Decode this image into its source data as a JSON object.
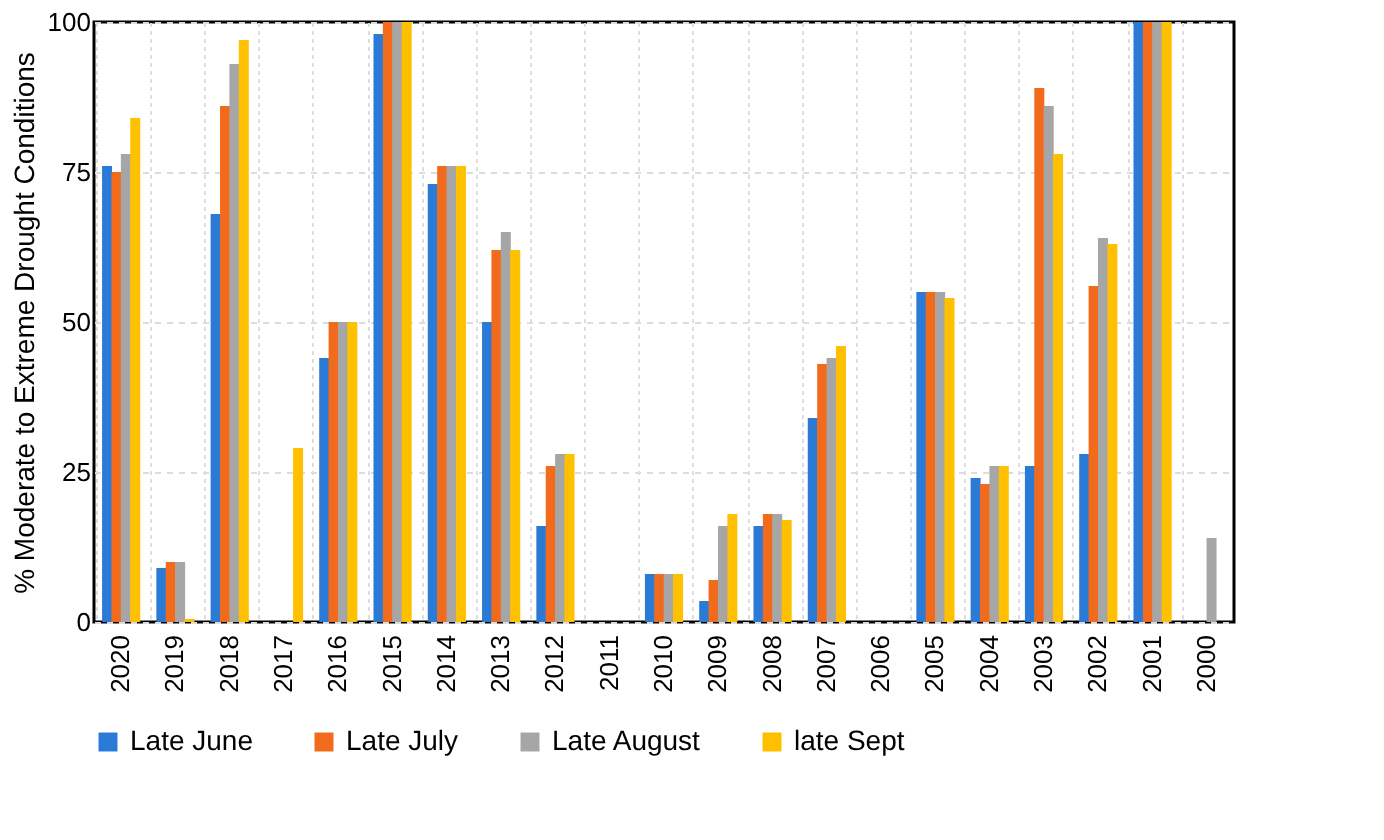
{
  "chart_data": {
    "type": "bar",
    "ylabel": "% Moderate to Extreme Drought Conditions",
    "categories": [
      "2020",
      "2019",
      "2018",
      "2017",
      "2016",
      "2015",
      "2014",
      "2013",
      "2012",
      "2011",
      "2010",
      "2009",
      "2008",
      "2007",
      "2006",
      "2005",
      "2004",
      "2003",
      "2002",
      "2001",
      "2000"
    ],
    "series": [
      {
        "name": "Late June",
        "color": "#2b7bd6",
        "values": [
          76,
          9,
          68,
          null,
          44,
          98,
          73,
          50,
          16,
          null,
          8,
          3.5,
          16,
          34,
          null,
          55,
          24,
          26,
          28,
          100,
          null
        ]
      },
      {
        "name": "Late July",
        "color": "#f26b1d",
        "values": [
          75,
          10,
          86,
          null,
          50,
          100,
          76,
          62,
          26,
          null,
          8,
          7,
          18,
          43,
          null,
          55,
          23,
          89,
          56,
          100,
          null
        ]
      },
      {
        "name": "Late August",
        "color": "#a6a6a6",
        "values": [
          78,
          10,
          93,
          null,
          50,
          100,
          76,
          65,
          28,
          null,
          8,
          16,
          18,
          44,
          null,
          55,
          26,
          86,
          64,
          100,
          14
        ]
      },
      {
        "name": "late Sept",
        "color": "#ffc000",
        "values": [
          84,
          0.5,
          97,
          29,
          50,
          100,
          76,
          62,
          28,
          null,
          8,
          18,
          17,
          46,
          null,
          54,
          26,
          78,
          63,
          100,
          null
        ]
      }
    ],
    "ylim": [
      0,
      100
    ],
    "yticks": [
      0,
      25,
      50,
      75,
      100
    ],
    "grid": true,
    "legend": "bottom"
  }
}
